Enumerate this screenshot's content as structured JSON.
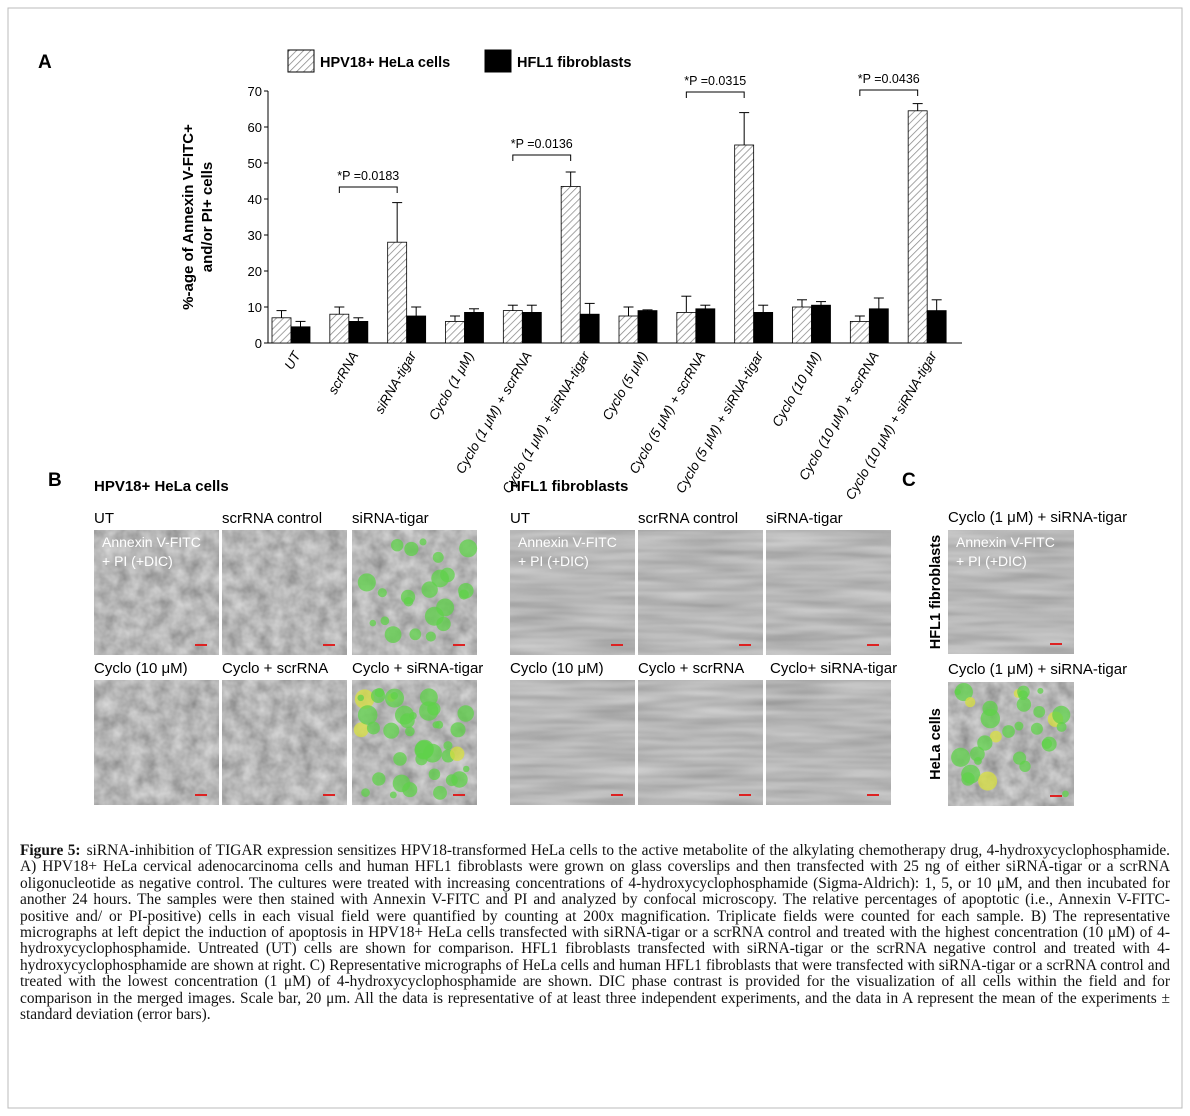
{
  "panel_a": {
    "label": "A"
  },
  "chart_data": {
    "type": "bar",
    "categories": [
      "UT",
      "scrRNA",
      "siRNA-tigar",
      "Cyclo (1 μM)",
      "Cyclo (1 μM) + scrRNA",
      "Cyclo (1 μM) + siRNA-tigar",
      "Cyclo (5 μM)",
      "Cyclo (5 μM) + scrRNA",
      "Cyclo (5 μM) + siRNA-tigar",
      "Cyclo (10 μM)",
      "Cyclo (10 μM) + scrRNA",
      "Cyclo (10 μM) + siRNA-tigar"
    ],
    "series": [
      {
        "name": "HPV18+ HeLa cells",
        "color": "#ffffff",
        "hatch": "#888888",
        "values": [
          7,
          8,
          28,
          6,
          9,
          43.5,
          7.5,
          8.5,
          55,
          10,
          6,
          64.5
        ],
        "errors": [
          2,
          2,
          11,
          1.5,
          1.5,
          4,
          2.5,
          4.5,
          9,
          2,
          1.5,
          2
        ]
      },
      {
        "name": "HFL1 fibroblasts",
        "color": "#000000",
        "values": [
          4.5,
          6,
          7.5,
          8.5,
          8.5,
          8,
          9,
          9.5,
          8.5,
          10.5,
          9.5,
          9
        ],
        "errors": [
          1.5,
          1,
          2.5,
          1,
          2,
          3,
          0.2,
          1,
          2,
          1,
          3,
          3
        ]
      }
    ],
    "ylabel": [
      "%-age of Annexin V-FITC+",
      "and/or PI+ cells"
    ],
    "ylim": [
      0,
      70
    ],
    "yticks": [
      0,
      10,
      20,
      30,
      40,
      50,
      60,
      70
    ],
    "grid": false,
    "annotations": [
      "*P =0.0183",
      "*P =0.0136",
      "*P =0.0315",
      "*P =0.0436"
    ]
  },
  "panel_b": {
    "label": "B",
    "groups": [
      {
        "title": "HPV18+ HeLa cells",
        "overlay": [
          "Annexin V-FITC",
          "+ PI (+DIC)"
        ],
        "tiles": [
          "UT",
          "scrRNA control",
          "siRNA-tigar",
          "Cyclo (10 μM)",
          "Cyclo + scrRNA",
          "Cyclo + siRNA-tigar"
        ]
      },
      {
        "title": "HFL1 fibroblasts",
        "overlay": [
          "Annexin V-FITC",
          "+ PI (+DIC)"
        ],
        "tiles": [
          "UT",
          "scrRNA control",
          "siRNA-tigar",
          "Cyclo (10 μM)",
          "Cyclo + scrRNA",
          "Cyclo+ siRNA-tigar"
        ]
      }
    ]
  },
  "panel_c": {
    "label": "C",
    "overlay": [
      "Annexin V-FITC",
      "+ PI (+DIC)"
    ],
    "rows": [
      {
        "side": "HFL1 fibroblasts",
        "tile": "Cyclo (1 μM) + siRNA-tigar"
      },
      {
        "side": "HeLa cells",
        "tile": "Cyclo (1 μM) + siRNA-tigar"
      }
    ]
  },
  "caption": {
    "label": "Figure 5:",
    "text": "siRNA-inhibition of TIGAR expression sensitizes HPV18-transformed HeLa cells to the active metabolite of the alkylating chemotherapy drug, 4-hydroxycyclophosphamide. A) HPV18+ HeLa cervical adenocarcinoma cells and human HFL1 fibroblasts were grown on glass coverslips and then transfected with 25 ng of either siRNA-tigar or a scrRNA oligonucleotide as negative control. The cultures were treated with increasing concentrations of 4-hydroxycyclophosphamide (Sigma-Aldrich): 1, 5, or 10 μM, and then incubated for another 24 hours. The samples were then stained with Annexin V-FITC and PI and analyzed by confocal microscopy. The relative percentages of apoptotic (i.e., Annexin V-FITC- positive and/ or PI-positive) cells in each visual field were quantified by counting at 200x magnification. Triplicate fields were counted for each sample. B) The representative micrographs at left depict the induction of apoptosis in HPV18+ HeLa cells transfected with siRNA-tigar or a scrRNA control and treated with the highest concentration (10 μM) of 4- hydroxycyclophosphamide. Untreated (UT) cells are shown for comparison. HFL1 fibroblasts transfected with siRNA-tigar or the scrRNA negative control and treated with 4- hydroxycyclophosphamide are shown at right. C) Representative micrographs of HeLa cells and human HFL1 fibroblasts that were transfected with siRNA-tigar or a scrRNA control and treated with the lowest concentration (1 μM) of 4-hydroxycyclophosphamide are shown. DIC phase contrast is provided for the visualization of all cells within the field and for comparison in the merged images. Scale bar, 20 μm. All the data is representative of at least three independent experiments, and the data in A represent the mean of the experiments ± standard deviation (error bars)."
  }
}
